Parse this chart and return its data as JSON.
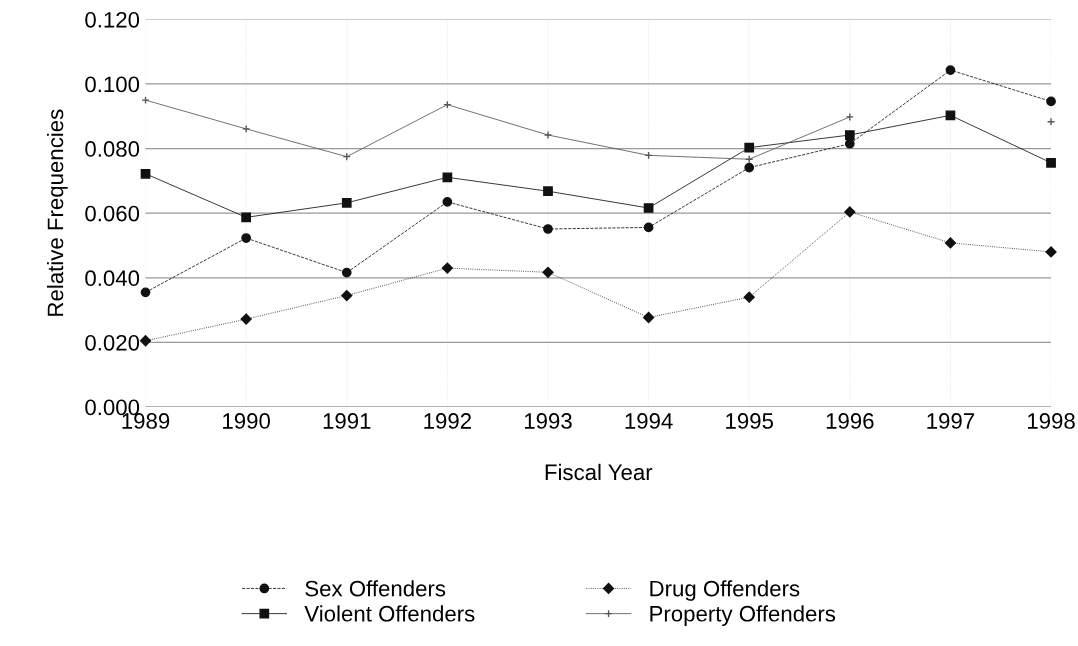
{
  "chart_data": {
    "type": "line",
    "xlabel": "Fiscal Year",
    "ylabel": "Relative Frequencies",
    "x": [
      1989,
      1990,
      1991,
      1992,
      1993,
      1994,
      1995,
      1996,
      1997,
      1998
    ],
    "xlim": [
      1989,
      1998
    ],
    "xticks": [
      1989,
      1990,
      1991,
      1992,
      1993,
      1994,
      1995,
      1996,
      1997,
      1998
    ],
    "ylim": [
      0,
      0.12
    ],
    "yticks": [
      {
        "value": 0,
        "label": "0.000"
      },
      {
        "value": 0.02,
        "label": "0.020"
      },
      {
        "value": 0.04,
        "label": "0.040"
      },
      {
        "value": 0.06,
        "label": "0.060"
      },
      {
        "value": 0.08,
        "label": "0.080"
      },
      {
        "value": 0.1,
        "label": "0.100"
      },
      {
        "value": 0.12,
        "label": "0.120"
      }
    ],
    "grid": true,
    "legend": "bottom",
    "series": [
      {
        "name": "Sex Offenders",
        "color": "#111111",
        "marker": "circle",
        "line_style": "dashed",
        "values": [
          0.0355,
          0.0523,
          0.0416,
          0.0635,
          0.0551,
          0.0556,
          0.0741,
          0.0815,
          0.1043,
          0.0946
        ]
      },
      {
        "name": "Violent Offenders",
        "color": "#111111",
        "marker": "square",
        "line_style": "solid",
        "values": [
          0.0722,
          0.0587,
          0.0632,
          0.0711,
          0.0668,
          0.0616,
          0.0803,
          0.0842,
          0.0903,
          0.0756
        ]
      },
      {
        "name": "Drug Offenders",
        "color": "#111111",
        "marker": "diamond",
        "line_style": "dotted",
        "values": [
          0.0205,
          0.0272,
          0.0345,
          0.043,
          0.0417,
          0.0277,
          0.034,
          0.0604,
          0.0508,
          0.048
        ]
      },
      {
        "name": "Property Offenders",
        "color": "#555555",
        "marker": "cross",
        "line_style": "solid",
        "values": [
          0.095,
          0.0861,
          0.0775,
          0.0936,
          0.0842,
          0.0779,
          0.0767,
          0.0898,
          null,
          0.0883
        ]
      }
    ]
  }
}
